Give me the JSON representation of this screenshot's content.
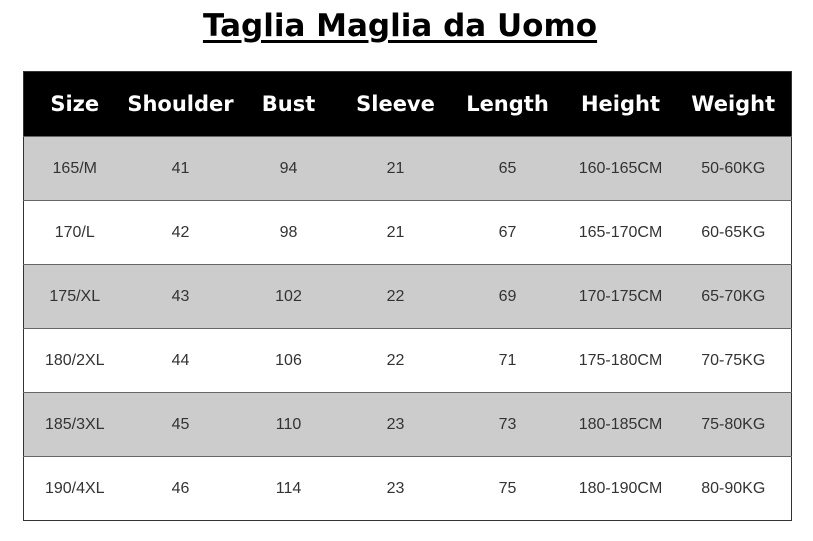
{
  "title": "Taglia Maglia da Uomo",
  "table": {
    "headers": [
      "Size",
      "Shoulder",
      "Bust",
      "Sleeve",
      "Length",
      "Height",
      "Weight"
    ],
    "rows": [
      [
        "165/M",
        "41",
        "94",
        "21",
        "65",
        "160-165CM",
        "50-60KG"
      ],
      [
        "170/L",
        "42",
        "98",
        "21",
        "67",
        "165-170CM",
        "60-65KG"
      ],
      [
        "175/XL",
        "43",
        "102",
        "22",
        "69",
        "170-175CM",
        "65-70KG"
      ],
      [
        "180/2XL",
        "44",
        "106",
        "22",
        "71",
        "175-180CM",
        "70-75KG"
      ],
      [
        "185/3XL",
        "45",
        "110",
        "23",
        "73",
        "180-185CM",
        "75-80KG"
      ],
      [
        "190/4XL",
        "46",
        "114",
        "23",
        "75",
        "180-190CM",
        "80-90KG"
      ]
    ]
  },
  "colors": {
    "header_bg": "#000000",
    "header_text": "#ffffff",
    "stripe": "#cccccc"
  }
}
